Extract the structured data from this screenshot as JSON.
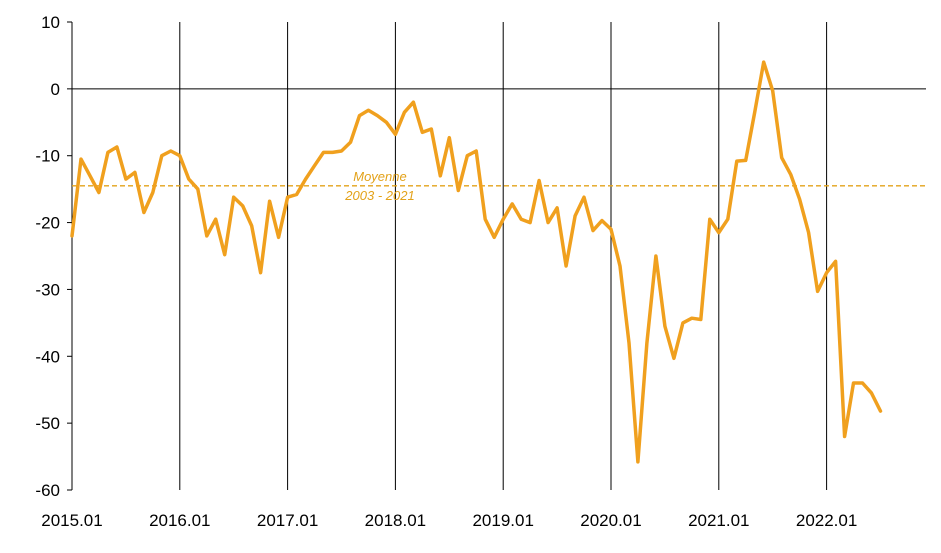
{
  "chart_data": {
    "type": "line",
    "title": "",
    "xlabel": "",
    "ylabel": "",
    "ylim": [
      -60,
      10
    ],
    "y_ticks": [
      "10",
      "0",
      "-10",
      "-20",
      "-30",
      "-40",
      "-50",
      "-60"
    ],
    "y_tick_values": [
      10,
      0,
      -10,
      -20,
      -30,
      -40,
      -50,
      -60
    ],
    "x_ticks": [
      "2015.01",
      "2016.01",
      "2017.01",
      "2018.01",
      "2019.01",
      "2020.01",
      "2021.01",
      "2022.01"
    ],
    "x_start": "2015.01",
    "grid": "vertical lines at each year",
    "legend": "none",
    "colors": {
      "series": "#f0a01e",
      "average": "#e3a21a",
      "axis": "#000000"
    },
    "series": [
      {
        "values": [
          -22,
          -10.5,
          -13,
          -15.5,
          -9.5,
          -8.7,
          -13.5,
          -12.5,
          -18.5,
          -15.5,
          -10,
          -9.3,
          -10,
          -13.5,
          -15,
          -22,
          -19.5,
          -24.8,
          -16.2,
          -17.5,
          -20.5,
          -27.5,
          -16.8,
          -22.2,
          -16.2,
          -15.8,
          -13.5,
          -11.5,
          -9.5,
          -9.5,
          -9.3,
          -8,
          -4,
          -3.2,
          -4,
          -5,
          -6.8,
          -3.5,
          -2,
          -6.5,
          -6,
          -13,
          -7.3,
          -15.2,
          -10,
          -9.3,
          -19.5,
          -22.2,
          -19.5,
          -17.2,
          -19.5,
          -20,
          -13.7,
          -20,
          -17.8,
          -26.5,
          -19,
          -16.2,
          -21.2,
          -19.7,
          -21,
          -26.5,
          -38,
          -55.8,
          -38,
          -25,
          -35.5,
          -40.3,
          -35,
          -34.3,
          -34.5,
          -19.5,
          -21.5,
          -19.5,
          -10.8,
          -10.7,
          -3.5,
          4,
          -0.3,
          -10.3,
          -12.8,
          -16.5,
          -21.5,
          -30.3,
          -27.5,
          -25.8,
          -52,
          -44,
          -44,
          -45.5,
          -48.2
        ]
      }
    ],
    "reference_line": {
      "value": -14.5,
      "label_line1": "Moyenne",
      "label_line2": "2003 - 2021"
    }
  }
}
